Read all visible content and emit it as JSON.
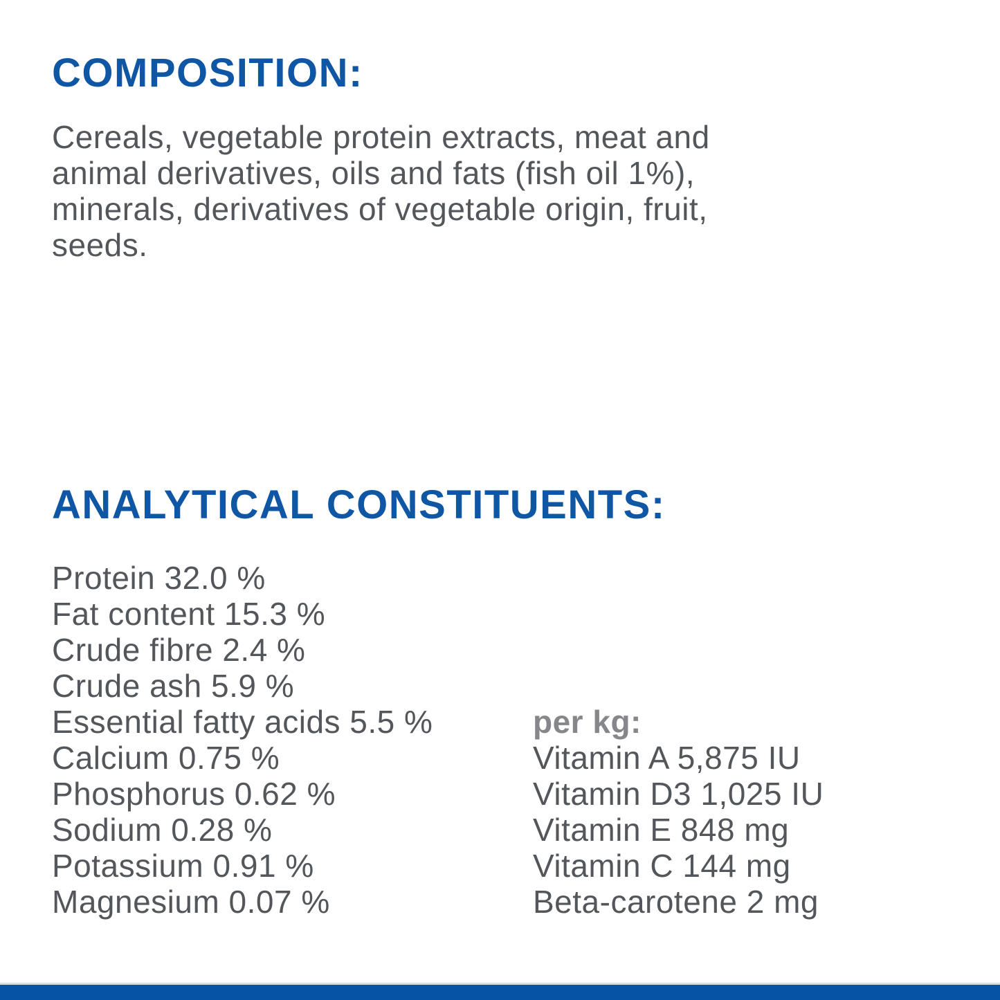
{
  "colors": {
    "heading_blue": "#0f56a4",
    "body_gray": "#53565a",
    "per_kg_gray": "#85878b",
    "footer_bar_blue": "#0652a4",
    "footer_line_gray": "#d9dce1",
    "background": "#ffffff"
  },
  "composition": {
    "heading": "COMPOSITION:",
    "lines": [
      "Cereals, vegetable protein extracts, meat and",
      "animal derivatives, oils and fats (fish oil 1%),",
      "minerals, derivatives of vegetable origin, fruit,",
      "seeds."
    ]
  },
  "analytical": {
    "heading": "ANALYTICAL CONSTITUENTS:",
    "left_column": [
      "Protein 32.0 %",
      "Fat content 15.3 %",
      "Crude fibre 2.4 %",
      "Crude ash 5.9 %",
      "Essential fatty acids 5.5 %",
      "Calcium 0.75 %",
      "Phosphorus 0.62 %",
      "Sodium 0.28 %",
      "Potassium 0.91 %",
      "Magnesium 0.07 %"
    ],
    "right_column": {
      "header": "per kg:",
      "items": [
        "Vitamin A 5,875 IU",
        "Vitamin D3 1,025 IU",
        "Vitamin E 848 mg",
        "Vitamin C 144 mg",
        "Beta-carotene 2 mg"
      ]
    }
  }
}
